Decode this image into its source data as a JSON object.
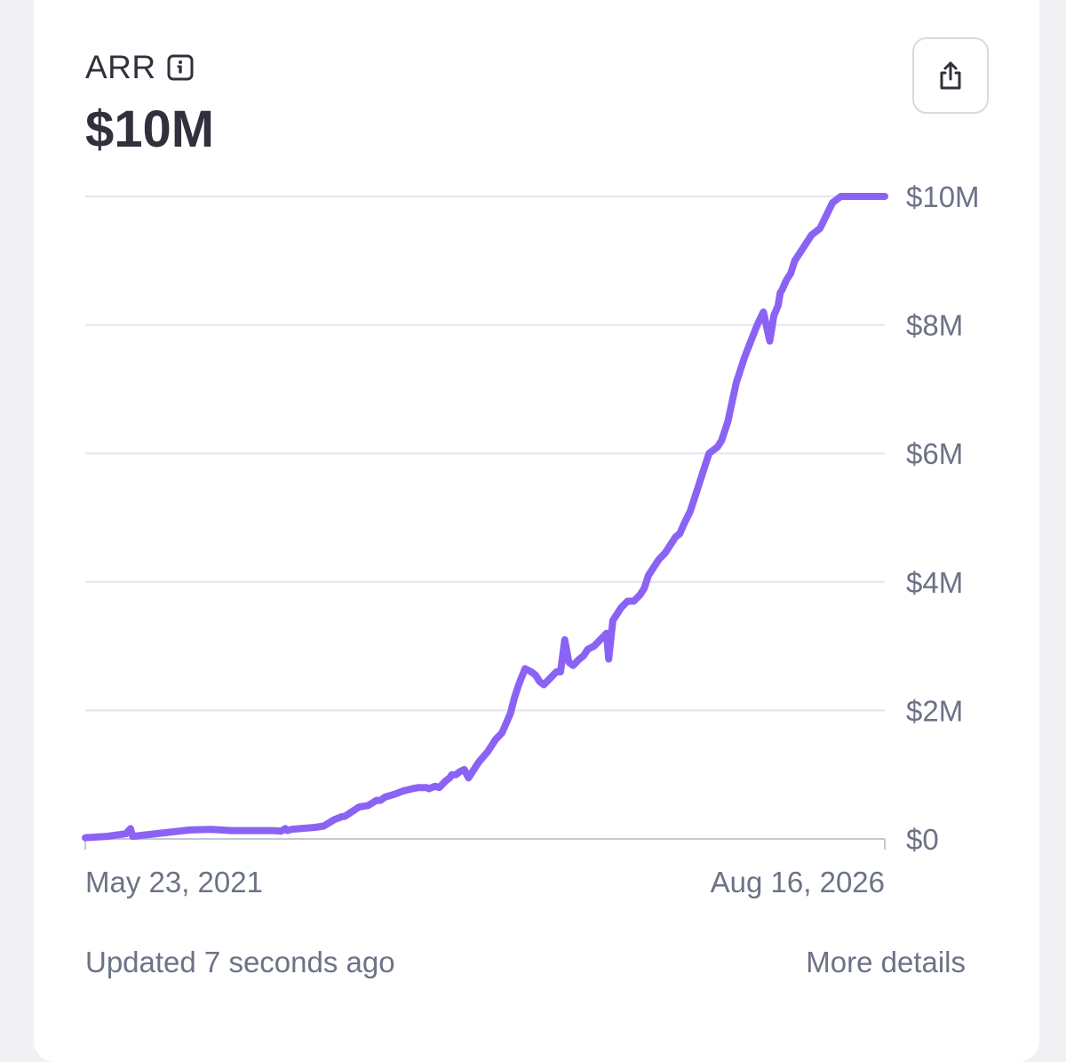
{
  "card": {
    "title": "ARR",
    "icon": "info-icon",
    "value": "$10M",
    "share_icon": "share-icon",
    "updated_text": "Updated 7 seconds ago",
    "more_details_label": "More details"
  },
  "colors": {
    "line": "#8b63f4",
    "grid": "#e3e5ee",
    "axis": "#c3c7d3",
    "text_muted": "#6b7385",
    "text_dark": "#30313d"
  },
  "chart_data": {
    "type": "line",
    "title": "",
    "xlabel": "",
    "ylabel": "",
    "x_tick_labels": [
      "May 23, 2021",
      "Aug 16, 2026"
    ],
    "xlim": [
      "2021-05-23",
      "2026-08-16"
    ],
    "y_ticks": [
      0,
      2,
      4,
      6,
      8,
      10
    ],
    "y_tick_labels": [
      "$0",
      "$2M",
      "$4M",
      "$6M",
      "$8M",
      "$10M"
    ],
    "ylim": [
      0,
      10
    ],
    "y_unit": "$M",
    "y_axis_position": "right",
    "grid": true,
    "legend": false,
    "series": [
      {
        "x": [
          "2021-05-23",
          "2021-07-14",
          "2021-08-28",
          "2021-09-08",
          "2021-09-13",
          "2021-11-20",
          "2022-01-28",
          "2022-03-20",
          "2022-05-07",
          "2022-06-19",
          "2022-07-15",
          "2022-08-14",
          "2022-09-03",
          "2022-09-13",
          "2022-09-18",
          "2022-09-28",
          "2022-10-18",
          "2022-11-23",
          "2022-12-14",
          "2023-01-08",
          "2023-01-28",
          "2023-02-02",
          "2023-03-09",
          "2023-03-30",
          "2023-04-19",
          "2023-04-29",
          "2023-05-09",
          "2023-06-03",
          "2023-06-23",
          "2023-07-13",
          "2023-07-28",
          "2023-08-17",
          "2023-08-22",
          "2023-09-06",
          "2023-09-16",
          "2023-10-01",
          "2023-10-11",
          "2023-10-16",
          "2023-10-26",
          "2023-11-05",
          "2023-11-15",
          "2023-11-25",
          "2023-12-05",
          "2023-12-20",
          "2024-01-09",
          "2024-01-19",
          "2024-01-29",
          "2024-02-13",
          "2024-02-23",
          "2024-03-04",
          "2024-03-14",
          "2024-03-24",
          "2024-04-08",
          "2024-04-23",
          "2024-05-03",
          "2024-05-13",
          "2024-05-23",
          "2024-06-07",
          "2024-06-22",
          "2024-07-02",
          "2024-07-12",
          "2024-07-22",
          "2024-08-01",
          "2024-08-16",
          "2024-08-26",
          "2024-09-05",
          "2024-09-20",
          "2024-10-05",
          "2024-10-20",
          "2024-10-25",
          "2024-11-04",
          "2024-11-24",
          "2024-12-09",
          "2024-12-24",
          "2025-01-08",
          "2025-01-18",
          "2025-01-28",
          "2025-02-07",
          "2025-02-22",
          "2025-03-09",
          "2025-03-24",
          "2025-04-03",
          "2025-04-13",
          "2025-04-23",
          "2025-05-08",
          "2025-05-23",
          "2025-06-07",
          "2025-06-22",
          "2025-07-02",
          "2025-07-12",
          "2025-07-22",
          "2025-08-06",
          "2025-08-26",
          "2025-09-15",
          "2025-09-30",
          "2025-10-15",
          "2025-10-30",
          "2025-11-14",
          "2025-11-24",
          "2025-12-04",
          "2025-12-09",
          "2025-12-14",
          "2025-12-24",
          "2026-01-03",
          "2026-01-13",
          "2026-02-02",
          "2026-02-22",
          "2026-03-14",
          "2026-03-29",
          "2026-04-13",
          "2026-05-03",
          "2026-05-23",
          "2026-06-07",
          "2026-06-22",
          "2026-07-12",
          "2026-07-27",
          "2026-08-06",
          "2026-08-16"
        ],
        "values": [
          0.02,
          0.04,
          0.08,
          0.16,
          0.04,
          0.09,
          0.14,
          0.15,
          0.13,
          0.13,
          0.13,
          0.13,
          0.12,
          0.16,
          0.13,
          0.15,
          0.16,
          0.18,
          0.2,
          0.3,
          0.35,
          0.35,
          0.5,
          0.52,
          0.6,
          0.6,
          0.65,
          0.7,
          0.75,
          0.78,
          0.8,
          0.8,
          0.78,
          0.82,
          0.8,
          0.9,
          0.95,
          1.0,
          1.0,
          1.05,
          1.08,
          0.95,
          1.05,
          1.2,
          1.35,
          1.45,
          1.55,
          1.65,
          1.8,
          1.95,
          2.2,
          2.4,
          2.65,
          2.6,
          2.55,
          2.45,
          2.4,
          2.5,
          2.6,
          2.6,
          3.1,
          2.75,
          2.7,
          2.8,
          2.85,
          2.95,
          3.0,
          3.1,
          3.2,
          2.8,
          3.4,
          3.6,
          3.7,
          3.7,
          3.8,
          3.9,
          4.1,
          4.2,
          4.35,
          4.45,
          4.6,
          4.7,
          4.75,
          4.9,
          5.1,
          5.4,
          5.7,
          6.0,
          6.05,
          6.1,
          6.2,
          6.5,
          7.1,
          7.5,
          7.75,
          8.0,
          8.2,
          7.75,
          8.15,
          8.3,
          8.5,
          8.55,
          8.7,
          8.8,
          9.0,
          9.2,
          9.4,
          9.5,
          9.7,
          9.9,
          10.0,
          10.0,
          10.0,
          10.0,
          10.0,
          10.0,
          10.0,
          10.0
        ]
      }
    ]
  }
}
